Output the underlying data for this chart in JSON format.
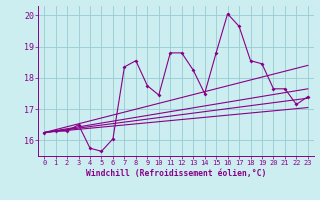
{
  "xlabel": "Windchill (Refroidissement éolien,°C)",
  "bg_color": "#cceef0",
  "grid_color": "#99ccd4",
  "line_color": "#880088",
  "xmin": -0.5,
  "xmax": 23.5,
  "ymin": 15.5,
  "ymax": 20.3,
  "yticks": [
    16,
    17,
    18,
    19,
    20
  ],
  "xticks": [
    0,
    1,
    2,
    3,
    4,
    5,
    6,
    7,
    8,
    9,
    10,
    11,
    12,
    13,
    14,
    15,
    16,
    17,
    18,
    19,
    20,
    21,
    22,
    23
  ],
  "series_x": [
    0,
    1,
    2,
    3,
    4,
    5,
    6,
    7,
    8,
    9,
    10,
    11,
    12,
    13,
    14,
    15,
    16,
    17,
    18,
    19,
    20,
    21,
    22,
    23
  ],
  "series_y": [
    16.25,
    16.3,
    16.3,
    16.5,
    15.75,
    15.65,
    16.05,
    18.35,
    18.55,
    17.75,
    17.45,
    18.8,
    18.8,
    18.25,
    17.5,
    18.8,
    20.05,
    19.65,
    18.55,
    18.45,
    17.65,
    17.65,
    17.15,
    17.4
  ],
  "trend1_x": [
    0,
    23
  ],
  "trend1_y": [
    16.25,
    17.05
  ],
  "trend2_x": [
    0,
    23
  ],
  "trend2_y": [
    16.25,
    17.35
  ],
  "trend3_x": [
    0,
    23
  ],
  "trend3_y": [
    16.25,
    17.65
  ],
  "trend4_x": [
    0,
    23
  ],
  "trend4_y": [
    16.25,
    18.4
  ]
}
